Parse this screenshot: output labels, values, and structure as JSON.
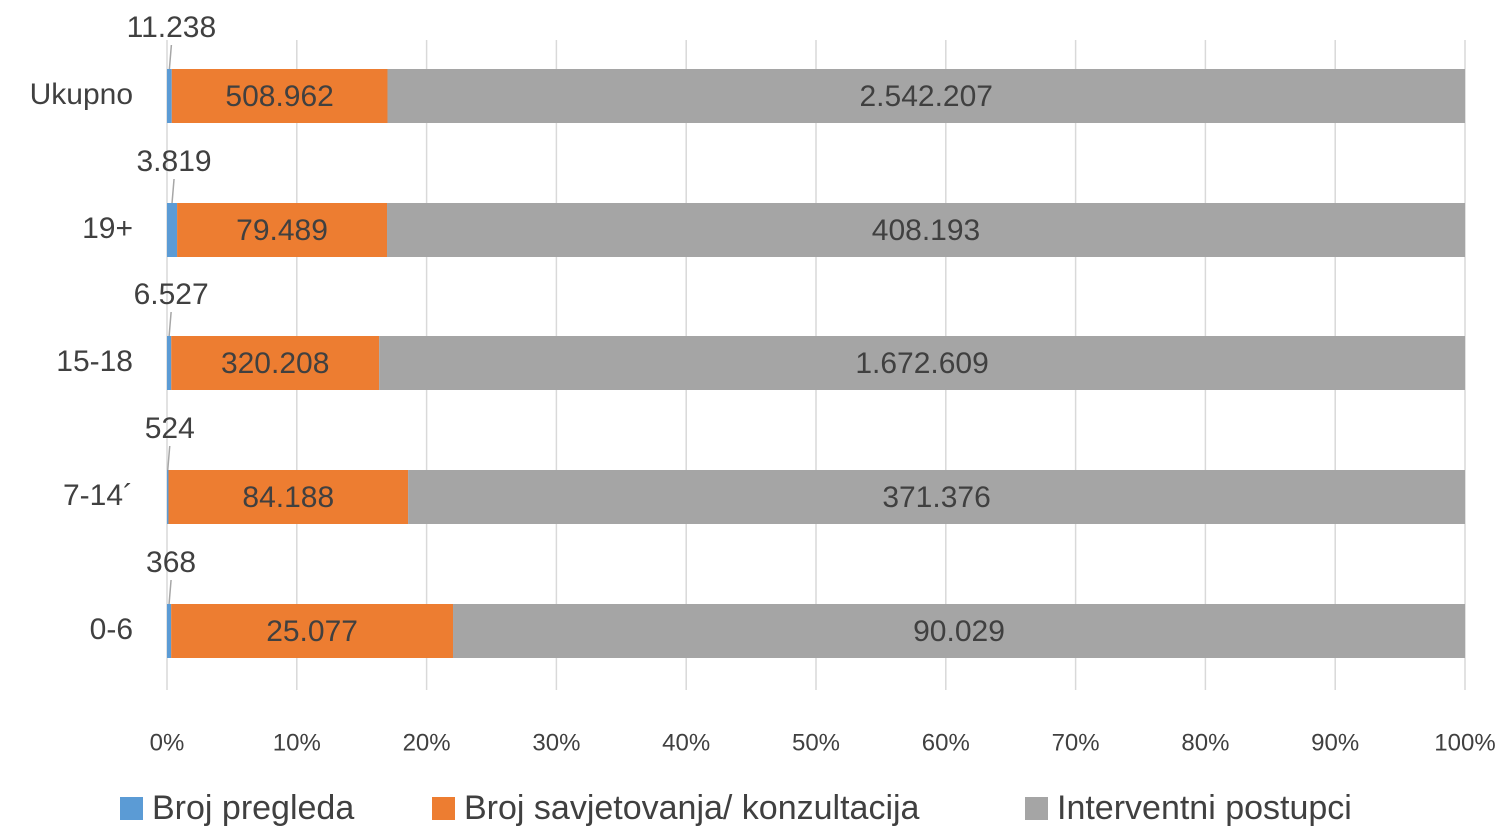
{
  "chart_data": {
    "type": "stacked-bar-100",
    "categories": [
      "Ukupno",
      "19+",
      "15-18",
      "7-14´",
      "0-6"
    ],
    "series": [
      {
        "name": "Broj pregleda",
        "color": "#5b9bd5",
        "values": [
          11238,
          3819,
          6527,
          524,
          368
        ],
        "value_labels": [
          "11.238",
          "3.819",
          "6.527",
          "524",
          "368"
        ]
      },
      {
        "name": "Broj savjetovanja/ konzultacija",
        "color": "#ed7d31",
        "values": [
          508962,
          79489,
          320208,
          84188,
          25077
        ],
        "value_labels": [
          "508.962",
          "79.489",
          "320.208",
          "84.188",
          "25.077"
        ]
      },
      {
        "name": "Interventni postupci",
        "color": "#a5a5a5",
        "values": [
          2542207,
          408193,
          1672609,
          371376,
          90029
        ],
        "value_labels": [
          "2.542.207",
          "408.193",
          "1.672.609",
          "371.376",
          "90.029"
        ]
      }
    ],
    "xlim": [
      0,
      100
    ],
    "xticks": [
      {
        "value": 0,
        "label": "0%"
      },
      {
        "value": 10,
        "label": "10%"
      },
      {
        "value": 20,
        "label": "20%"
      },
      {
        "value": 30,
        "label": "30%"
      },
      {
        "value": 40,
        "label": "40%"
      },
      {
        "value": 50,
        "label": "50%"
      },
      {
        "value": 60,
        "label": "60%"
      },
      {
        "value": 70,
        "label": "70%"
      },
      {
        "value": 80,
        "label": "80%"
      },
      {
        "value": 90,
        "label": "90%"
      },
      {
        "value": 100,
        "label": "100%"
      }
    ],
    "grid": true,
    "legend": "bottom"
  }
}
